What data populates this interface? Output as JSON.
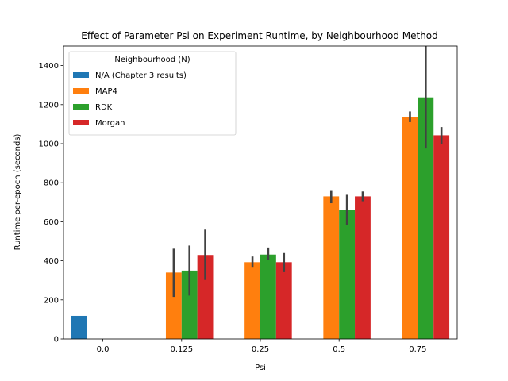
{
  "chart_data": {
    "type": "bar",
    "title": "Effect of Parameter Psi on Experiment Runtime, by Neighbourhood Method",
    "xlabel": "Psi",
    "ylabel": "Runtime per-epoch (seconds)",
    "categories": [
      "0.0",
      "0.125",
      "0.25",
      "0.5",
      "0.75"
    ],
    "ylim": [
      0,
      1500
    ],
    "yticks": [
      0,
      200,
      400,
      600,
      800,
      1000,
      1200,
      1400
    ],
    "grid": false,
    "legend": {
      "title": "Neighbourhood (N)",
      "placement": "upper-left"
    },
    "series": [
      {
        "name": "N/A (Chapter 3 results)",
        "color": "#1f77b4",
        "values": [
          118,
          null,
          null,
          null,
          null
        ],
        "err_low": [
          null,
          null,
          null,
          null,
          null
        ],
        "err_high": [
          null,
          null,
          null,
          null,
          null
        ]
      },
      {
        "name": "MAP4",
        "color": "#ff7f0e",
        "values": [
          null,
          340,
          393,
          730,
          1137
        ],
        "err_low": [
          null,
          215,
          365,
          695,
          1110
        ],
        "err_high": [
          null,
          462,
          422,
          762,
          1165
        ]
      },
      {
        "name": "RDK",
        "color": "#2ca02c",
        "values": [
          null,
          350,
          432,
          660,
          1237
        ],
        "err_low": [
          null,
          222,
          405,
          585,
          975
        ],
        "err_high": [
          null,
          478,
          468,
          738,
          1500
        ]
      },
      {
        "name": "Morgan",
        "color": "#d62728",
        "values": [
          null,
          430,
          393,
          730,
          1043
        ],
        "err_low": [
          null,
          302,
          342,
          705,
          1000
        ],
        "err_high": [
          null,
          560,
          440,
          755,
          1085
        ]
      }
    ]
  }
}
